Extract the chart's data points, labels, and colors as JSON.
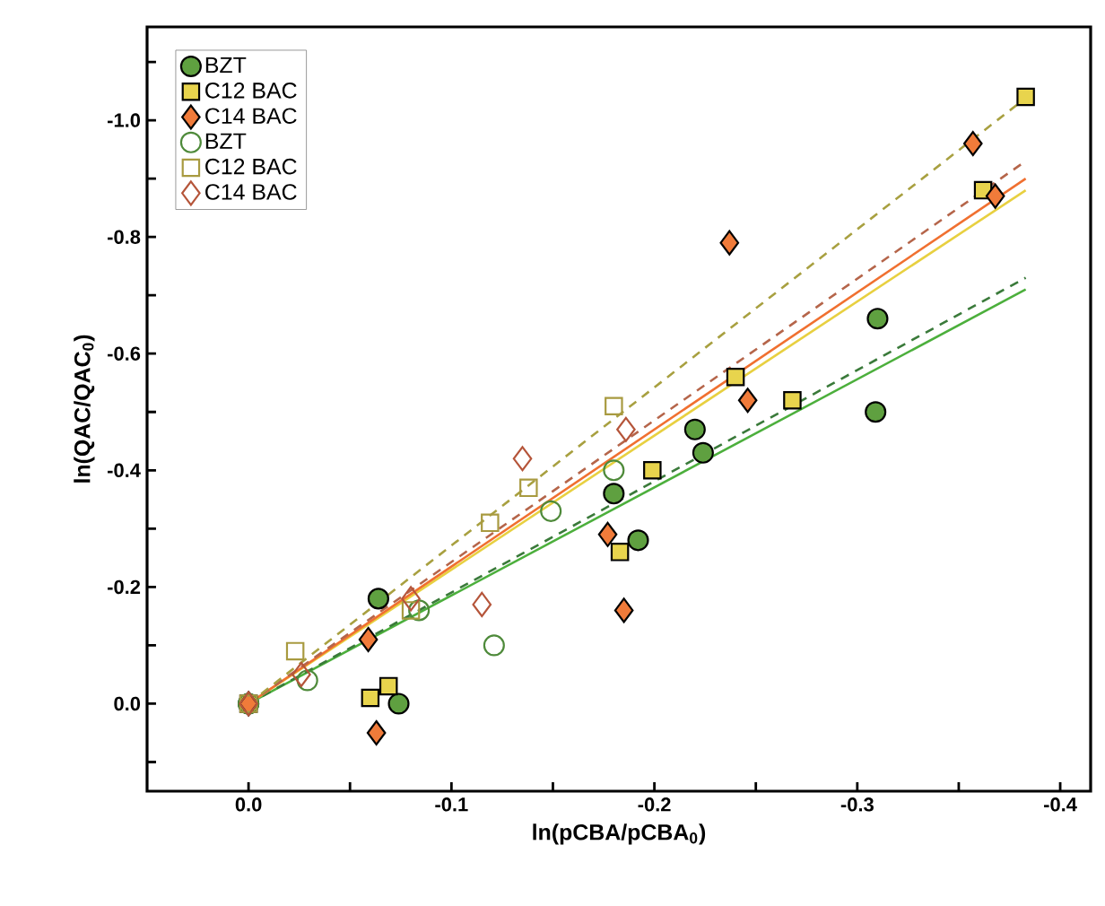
{
  "chart_data": {
    "type": "scatter",
    "xlabel": "ln(pCBA/pCBA$_{0}$)",
    "ylabel": "ln(QAC/QAC$_{0}$)",
    "xlim": [
      0.05,
      -0.415
    ],
    "ylim": [
      0.15,
      -1.16
    ],
    "xticks": [
      {
        "value": 0,
        "label": "0.0"
      },
      {
        "value": -0.05,
        "label": null
      },
      {
        "value": -0.1,
        "label": "-0.1"
      },
      {
        "value": -0.15,
        "label": null
      },
      {
        "value": -0.2,
        "label": "-0.2"
      },
      {
        "value": -0.25,
        "label": null
      },
      {
        "value": -0.3,
        "label": "-0.3"
      },
      {
        "value": -0.35,
        "label": null
      },
      {
        "value": -0.4,
        "label": "-0.4"
      }
    ],
    "yticks": [
      {
        "value": 0.1,
        "label": null
      },
      {
        "value": 0,
        "label": "0.0"
      },
      {
        "value": -0.1,
        "label": null
      },
      {
        "value": -0.2,
        "label": "-0.2"
      },
      {
        "value": -0.3,
        "label": null
      },
      {
        "value": -0.4,
        "label": "-0.4"
      },
      {
        "value": -0.5,
        "label": null
      },
      {
        "value": -0.6,
        "label": "-0.6"
      },
      {
        "value": -0.7,
        "label": null
      },
      {
        "value": -0.8,
        "label": "-0.8"
      },
      {
        "value": -0.9,
        "label": null
      },
      {
        "value": -1.0,
        "label": "-1.0"
      },
      {
        "value": -1.1,
        "label": null
      }
    ],
    "grid": false,
    "legend": "top left",
    "series": [
      {
        "type": "line",
        "color": "#4caf3c",
        "line_style": "solid",
        "marker": "none",
        "x": [
          0,
          -0.383
        ],
        "values": [
          0,
          -0.71
        ]
      },
      {
        "type": "line",
        "color": "#3a7a3a",
        "line_style": "dashed",
        "marker": "none",
        "x": [
          0,
          -0.383
        ],
        "values": [
          0,
          -0.73
        ]
      },
      {
        "type": "line",
        "color": "#e8d040",
        "line_style": "solid",
        "marker": "none",
        "x": [
          0,
          -0.383
        ],
        "values": [
          0,
          -0.88
        ]
      },
      {
        "type": "line",
        "color": "#f07030",
        "line_style": "solid",
        "marker": "none",
        "x": [
          0,
          -0.383
        ],
        "values": [
          0,
          -0.9
        ]
      },
      {
        "type": "line",
        "color": "#b5654a",
        "line_style": "dashed",
        "marker": "none",
        "x": [
          0,
          -0.383
        ],
        "values": [
          0,
          -0.93
        ]
      },
      {
        "type": "line",
        "color": "#a8a040",
        "line_style": "dashed",
        "marker": "none",
        "x": [
          0,
          -0.38
        ],
        "values": [
          0,
          -1.03
        ]
      },
      {
        "name": "BZT",
        "color": "#5fa040",
        "marker": "circle",
        "x": [
          0,
          -0.064,
          -0.074,
          -0.18,
          -0.192,
          -0.22,
          -0.224,
          -0.309,
          -0.31
        ],
        "values": [
          0,
          -0.18,
          0.0,
          -0.36,
          -0.28,
          -0.47,
          -0.43,
          -0.5,
          -0.66
        ]
      },
      {
        "name": "C12 BAC",
        "color": "#e8d44d",
        "marker": "square",
        "x": [
          0,
          -0.06,
          -0.069,
          -0.183,
          -0.199,
          -0.24,
          -0.268,
          -0.362,
          -0.383
        ],
        "values": [
          0,
          -0.01,
          -0.03,
          -0.26,
          -0.4,
          -0.56,
          -0.52,
          -0.88,
          -1.04
        ]
      },
      {
        "name": "C14 BAC",
        "color": "#f07b3a",
        "marker": "diamond",
        "x": [
          0,
          -0.059,
          -0.063,
          -0.177,
          -0.185,
          -0.237,
          -0.246,
          -0.357,
          -0.368
        ],
        "values": [
          0,
          -0.11,
          0.05,
          -0.29,
          -0.16,
          -0.79,
          -0.52,
          -0.96,
          -0.87
        ]
      },
      {
        "name": "BZT",
        "color": "#4e8a3a",
        "marker": "circle",
        "x": [
          0,
          -0.029,
          -0.084,
          -0.121,
          -0.149,
          -0.18
        ],
        "values": [
          0,
          -0.04,
          -0.16,
          -0.1,
          -0.33,
          -0.4
        ]
      },
      {
        "name": "C12 BAC",
        "color": "#a89a40",
        "marker": "square",
        "x": [
          0,
          -0.023,
          -0.08,
          -0.119,
          -0.138,
          -0.18
        ],
        "values": [
          0,
          -0.09,
          -0.16,
          -0.31,
          -0.37,
          -0.51
        ]
      },
      {
        "name": "C14 BAC",
        "color": "#b5553a",
        "marker": "diamond",
        "x": [
          0,
          -0.026,
          -0.08,
          -0.115,
          -0.135,
          -0.186
        ],
        "values": [
          0,
          -0.05,
          -0.18,
          -0.17,
          -0.42,
          -0.47
        ]
      }
    ]
  }
}
